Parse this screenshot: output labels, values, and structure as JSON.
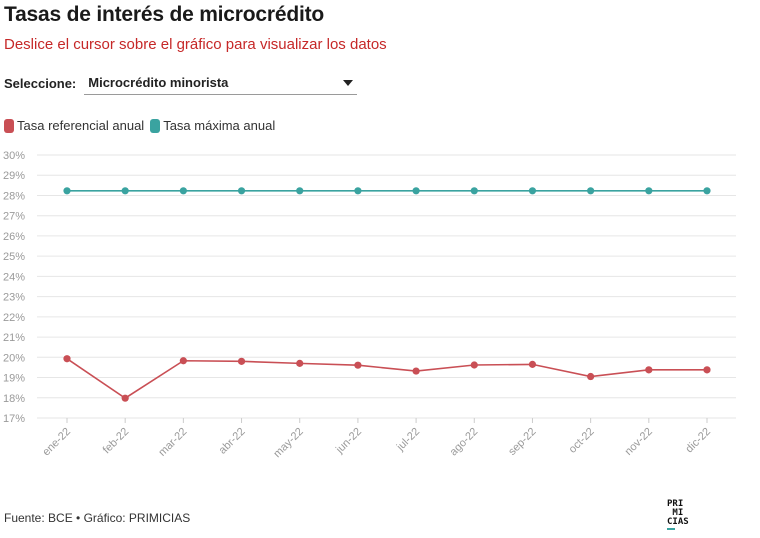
{
  "header": {
    "title": "Tasas de interés de microcrédito",
    "subtitle": "Deslice el cursor sobre el gráfico para visualizar los datos"
  },
  "selector": {
    "label": "Seleccione:",
    "value": "Microcrédito minorista"
  },
  "legend": [
    {
      "label": "Tasa referencial anual",
      "color": "#c94f55"
    },
    {
      "label": "Tasa máxima anual",
      "color": "#3aa3a0"
    }
  ],
  "chart_data": {
    "type": "line",
    "categories": [
      "ene-22",
      "feb-22",
      "mar-22",
      "abr-22",
      "may-22",
      "jun-22",
      "jul-22",
      "ago-22",
      "sep-22",
      "oct-22",
      "nov-22",
      "dic-22"
    ],
    "series": [
      {
        "name": "Tasa referencial anual",
        "color": "#c94f55",
        "values": [
          19.93,
          17.98,
          19.83,
          19.8,
          19.7,
          19.61,
          19.32,
          19.62,
          19.65,
          19.05,
          19.38,
          19.38
        ]
      },
      {
        "name": "Tasa máxima anual",
        "color": "#3aa3a0",
        "values": [
          28.23,
          28.23,
          28.23,
          28.23,
          28.23,
          28.23,
          28.23,
          28.23,
          28.23,
          28.23,
          28.23,
          28.23
        ]
      }
    ],
    "ylim": [
      17,
      30
    ],
    "yticks": [
      "17%",
      "18%",
      "19%",
      "20%",
      "21%",
      "22%",
      "23%",
      "24%",
      "25%",
      "26%",
      "27%",
      "28%",
      "29%",
      "30%"
    ],
    "grid": true,
    "legend_position": "top-left"
  },
  "footer": {
    "source": "Fuente: BCE • Gráfico: PRIMICIAS",
    "logo_lines": [
      "PRI",
      " MI",
      "CIAS"
    ]
  }
}
